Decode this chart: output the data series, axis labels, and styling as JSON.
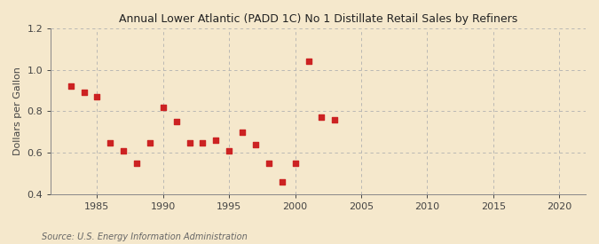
{
  "title": "Annual Lower Atlantic (PADD 1C) No 1 Distillate Retail Sales by Refiners",
  "ylabel": "Dollars per Gallon",
  "source": "Source: U.S. Energy Information Administration",
  "xlim": [
    1981.5,
    2022
  ],
  "ylim": [
    0.4,
    1.2
  ],
  "xticks": [
    1985,
    1990,
    1995,
    2000,
    2005,
    2010,
    2015,
    2020
  ],
  "yticks": [
    0.4,
    0.6,
    0.8,
    1.0,
    1.2
  ],
  "background_color": "#f5e8cc",
  "marker_color": "#cc2222",
  "data": [
    [
      1983,
      0.92
    ],
    [
      1984,
      0.89
    ],
    [
      1985,
      0.87
    ],
    [
      1986,
      0.65
    ],
    [
      1987,
      0.61
    ],
    [
      1988,
      0.55
    ],
    [
      1989,
      0.65
    ],
    [
      1990,
      0.82
    ],
    [
      1991,
      0.75
    ],
    [
      1992,
      0.65
    ],
    [
      1993,
      0.65
    ],
    [
      1994,
      0.66
    ],
    [
      1995,
      0.61
    ],
    [
      1996,
      0.7
    ],
    [
      1997,
      0.64
    ],
    [
      1998,
      0.55
    ],
    [
      1999,
      0.46
    ],
    [
      2000,
      0.55
    ],
    [
      2001,
      1.04
    ],
    [
      2002,
      0.77
    ],
    [
      2003,
      0.76
    ]
  ]
}
